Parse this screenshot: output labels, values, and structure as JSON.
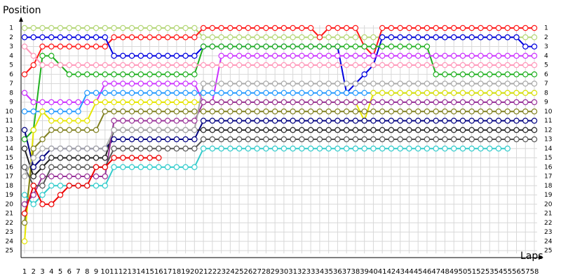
{
  "chart_data": {
    "type": "line",
    "y_title": "Position",
    "x_title": "Laps",
    "y_inverted": true,
    "grid": true,
    "marker": "circle",
    "x": [
      1,
      2,
      3,
      4,
      5,
      6,
      7,
      8,
      9,
      10,
      11,
      12,
      13,
      14,
      15,
      16,
      17,
      18,
      19,
      20,
      21,
      22,
      23,
      24,
      25,
      26,
      27,
      28,
      29,
      30,
      31,
      32,
      33,
      34,
      35,
      36,
      37,
      38,
      39,
      40,
      41,
      42,
      43,
      44,
      45,
      46,
      47,
      48,
      49,
      50,
      51,
      52,
      53,
      54,
      55,
      56,
      57,
      58
    ],
    "xlim": [
      1,
      58
    ],
    "xticks": [
      1,
      2,
      3,
      4,
      5,
      6,
      7,
      8,
      9,
      10,
      11,
      12,
      13,
      14,
      15,
      16,
      17,
      18,
      19,
      20,
      21,
      22,
      23,
      24,
      25,
      26,
      27,
      28,
      29,
      30,
      31,
      32,
      33,
      34,
      35,
      36,
      37,
      38,
      39,
      40,
      41,
      42,
      43,
      44,
      45,
      46,
      47,
      48,
      49,
      50,
      51,
      52,
      53,
      54,
      55,
      56,
      57,
      58
    ],
    "ylim": [
      1,
      25
    ],
    "yticks": [
      1,
      2,
      3,
      4,
      5,
      6,
      7,
      8,
      9,
      10,
      11,
      12,
      13,
      14,
      15,
      16,
      17,
      18,
      19,
      20,
      21,
      22,
      23,
      24,
      25
    ],
    "series": [
      {
        "color": "#b5d778",
        "values": [
          1,
          1,
          1,
          1,
          1,
          1,
          1,
          1,
          1,
          1,
          1,
          1,
          1,
          1,
          1,
          1,
          1,
          1,
          1,
          1,
          2,
          2,
          2,
          2,
          2,
          2,
          2,
          2,
          2,
          2,
          2,
          2,
          2,
          2,
          2,
          2,
          2,
          2,
          2,
          2,
          2,
          2,
          2,
          2,
          2,
          2,
          2,
          2,
          2,
          2,
          2,
          2,
          2,
          2,
          2,
          2,
          2,
          2
        ]
      },
      {
        "color": "#ff1a1a",
        "values": [
          6,
          5,
          3,
          3,
          3,
          3,
          3,
          3,
          3,
          3,
          2,
          2,
          2,
          2,
          2,
          2,
          2,
          2,
          2,
          2,
          1,
          1,
          1,
          1,
          1,
          1,
          1,
          1,
          1,
          1,
          1,
          1,
          1,
          2,
          1,
          1,
          1,
          1,
          3,
          4,
          1,
          1,
          1,
          1,
          1,
          1,
          1,
          1,
          1,
          1,
          1,
          1,
          1,
          1,
          1,
          1,
          1,
          1
        ]
      },
      {
        "color": "#0000e0",
        "values": [
          2,
          2,
          2,
          2,
          2,
          2,
          2,
          2,
          2,
          2,
          4,
          4,
          4,
          4,
          4,
          4,
          4,
          4,
          4,
          4,
          3,
          3,
          3,
          3,
          3,
          3,
          3,
          3,
          3,
          3,
          3,
          3,
          3,
          3,
          3,
          3,
          8,
          7,
          6,
          5,
          2,
          2,
          2,
          2,
          2,
          2,
          2,
          2,
          2,
          2,
          2,
          2,
          2,
          2,
          2,
          2,
          3,
          3
        ]
      },
      {
        "color": "#20b020",
        "values": [
          13,
          12,
          4,
          4,
          5,
          6,
          6,
          6,
          6,
          6,
          6,
          6,
          6,
          6,
          6,
          6,
          6,
          6,
          6,
          6,
          3,
          3,
          3,
          3,
          3,
          3,
          3,
          3,
          3,
          3,
          3,
          3,
          3,
          3,
          3,
          3,
          3,
          3,
          3,
          3,
          3,
          3,
          3,
          3,
          3,
          3,
          6,
          6,
          6,
          6,
          6,
          6,
          6,
          6,
          6,
          6,
          6,
          6
        ]
      },
      {
        "color": "#ff99bb",
        "values": [
          3,
          4,
          5,
          5,
          5,
          5,
          5,
          5,
          5,
          5,
          5,
          5,
          5,
          5,
          5,
          5,
          5,
          5,
          5,
          5,
          5,
          5,
          5,
          5,
          5,
          5,
          5,
          5,
          5,
          5,
          5,
          5,
          5,
          5,
          5,
          5,
          5,
          5,
          5,
          5,
          5,
          5,
          5,
          5,
          5,
          5,
          5,
          5,
          5,
          5,
          5,
          5,
          5,
          5,
          5,
          5,
          5,
          5
        ]
      },
      {
        "color": "#cc33ff",
        "values": [
          8,
          9,
          9,
          9,
          9,
          9,
          9,
          9,
          9,
          7,
          7,
          7,
          7,
          7,
          7,
          7,
          7,
          7,
          7,
          7,
          9,
          9,
          4,
          4,
          4,
          4,
          4,
          4,
          4,
          4,
          4,
          4,
          4,
          4,
          4,
          4,
          4,
          4,
          4,
          4,
          4,
          4,
          4,
          4,
          4,
          4,
          4,
          4,
          4,
          4,
          4,
          4,
          4,
          4,
          4,
          4,
          4,
          4
        ]
      },
      {
        "color": "#2299ff",
        "values": [
          10,
          10,
          10,
          10,
          10,
          10,
          10,
          8,
          8,
          8,
          8,
          8,
          8,
          8,
          8,
          8,
          8,
          8,
          8,
          8,
          8,
          8,
          8,
          8,
          8,
          8,
          8,
          8,
          8,
          8,
          8,
          8,
          8,
          8,
          8,
          8,
          8,
          8,
          8,
          8,
          8,
          8,
          8,
          8,
          8,
          8,
          8,
          8,
          8,
          8,
          8,
          8,
          8,
          8,
          8,
          8,
          8,
          8
        ]
      },
      {
        "color": "#e6e600",
        "values": [
          24,
          12,
          10,
          11,
          11,
          11,
          11,
          11,
          9,
          9,
          9,
          9,
          9,
          9,
          9,
          9,
          9,
          9,
          9,
          9,
          9,
          9,
          9,
          9,
          9,
          9,
          9,
          9,
          9,
          9,
          9,
          9,
          9,
          9,
          9,
          9,
          9,
          9,
          11,
          8,
          8,
          8,
          8,
          8,
          8,
          8,
          8,
          8,
          8,
          8,
          8,
          8,
          8,
          8,
          8,
          8,
          8,
          8
        ]
      },
      {
        "color": "#808020",
        "values": [
          22,
          14,
          13,
          12,
          12,
          12,
          12,
          12,
          12,
          10,
          10,
          10,
          10,
          10,
          10,
          10,
          10,
          10,
          10,
          10,
          10,
          10,
          10,
          10,
          10,
          10,
          10,
          10,
          10,
          10,
          10,
          10,
          10,
          10,
          10,
          10,
          10,
          10,
          10,
          10,
          10,
          10,
          10,
          10,
          10,
          10,
          10,
          10,
          10,
          10,
          10,
          10,
          10,
          10,
          10,
          10,
          10,
          10
        ]
      },
      {
        "color": "#000080",
        "values": [
          12,
          16,
          15,
          14,
          14,
          14,
          14,
          14,
          14,
          14,
          13,
          13,
          13,
          13,
          13,
          13,
          13,
          13,
          13,
          13,
          11,
          11,
          11,
          11,
          11,
          11,
          11,
          11,
          11,
          11,
          11,
          11,
          11,
          11,
          11,
          11,
          11,
          11,
          11,
          11,
          11,
          11,
          11,
          11,
          11,
          11,
          11,
          11,
          11,
          11,
          11,
          11,
          11,
          11,
          11,
          11,
          11,
          11
        ]
      },
      {
        "color": "#222222",
        "values": [
          14,
          17,
          16,
          15,
          15,
          15,
          15,
          15,
          15,
          15,
          12,
          12,
          12,
          12,
          12,
          12,
          12,
          12,
          12,
          12,
          12,
          12,
          12,
          12,
          12,
          12,
          12,
          12,
          12,
          12,
          12,
          12,
          12,
          12,
          12,
          12,
          12,
          12,
          12,
          12,
          12,
          12,
          12,
          12,
          12,
          12,
          12,
          12,
          12,
          12,
          12,
          12,
          12,
          12,
          12,
          12,
          12,
          12
        ]
      },
      {
        "color": "#993399",
        "values": [
          20,
          19,
          17,
          17,
          17,
          17,
          17,
          17,
          17,
          17,
          11,
          11,
          11,
          11,
          11,
          11,
          11,
          11,
          11,
          11,
          9,
          9,
          9,
          9,
          9,
          9,
          9,
          9,
          9,
          9,
          9,
          9,
          9,
          9,
          9,
          9,
          9,
          9,
          9,
          9,
          9,
          9,
          9,
          9,
          9,
          9,
          9,
          9,
          9,
          9,
          9,
          9,
          9,
          9,
          9,
          9,
          9,
          9
        ]
      },
      {
        "color": "#555555",
        "values": [
          16,
          18,
          18,
          16,
          16,
          16,
          16,
          16,
          16,
          16,
          14,
          14,
          14,
          14,
          14,
          14,
          14,
          14,
          14,
          14,
          13,
          13,
          13,
          13,
          13,
          13,
          13,
          13,
          13,
          13,
          13,
          13,
          13,
          13,
          13,
          13,
          13,
          13,
          13,
          13,
          13,
          13,
          13,
          13,
          13,
          13,
          13,
          13,
          13,
          13,
          13,
          13,
          13,
          13,
          13,
          13,
          13,
          13
        ]
      },
      {
        "color": "#33cccc",
        "values": [
          19,
          20,
          19,
          18,
          18,
          18,
          18,
          18,
          18,
          18,
          16,
          16,
          16,
          16,
          16,
          16,
          16,
          16,
          16,
          16,
          14,
          14,
          14,
          14,
          14,
          14,
          14,
          14,
          14,
          14,
          14,
          14,
          14,
          14,
          14,
          14,
          14,
          14,
          14,
          14,
          14,
          14,
          14,
          14,
          14,
          14,
          14,
          14,
          14,
          14,
          14,
          14,
          14,
          14,
          14,
          null,
          null,
          null
        ]
      },
      {
        "color": "#ee0000",
        "values": [
          21,
          18,
          20,
          20,
          19,
          18,
          18,
          18,
          16,
          16,
          15,
          15,
          15,
          15,
          15,
          15,
          null,
          null,
          null,
          null,
          null,
          null,
          null,
          null,
          null,
          null,
          null,
          null,
          null,
          null,
          null,
          null,
          null,
          null,
          null,
          null,
          null,
          null,
          null,
          null,
          null,
          null,
          null,
          null,
          null,
          null,
          null,
          null,
          null,
          null,
          null,
          null,
          null,
          null,
          null,
          null,
          null,
          null
        ]
      },
      {
        "color": "#aaaaaa",
        "values": [
          17,
          15,
          14,
          14,
          14,
          14,
          14,
          14,
          14,
          14,
          12,
          12,
          12,
          12,
          12,
          12,
          12,
          12,
          12,
          12,
          7,
          7,
          7,
          7,
          7,
          7,
          7,
          7,
          7,
          7,
          7,
          7,
          7,
          7,
          7,
          7,
          7,
          7,
          7,
          7,
          7,
          7,
          7,
          7,
          7,
          7,
          7,
          7,
          7,
          7,
          7,
          7,
          7,
          7,
          7,
          7,
          7,
          7
        ]
      }
    ]
  }
}
